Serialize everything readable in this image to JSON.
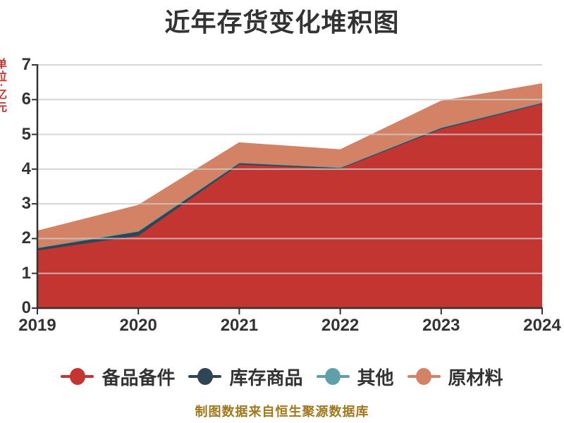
{
  "title": "近年存货变化堆积图",
  "y_axis_unit_clipped": "单位:亿元",
  "source_note": "制图数据来自恒生聚源数据库",
  "colors": {
    "background": "#ffffff",
    "title_text": "#333333",
    "axis": "#333333",
    "grid_line": "#cccccc",
    "tick_label_text": "#333333",
    "legend_text": "#333333",
    "source_note_text": "#a0781e",
    "y_axis_unit_text": "#c23531"
  },
  "chart_data": {
    "type": "area",
    "stacked": true,
    "title": "近年存货变化堆积图",
    "x_categories": [
      "2019",
      "2020",
      "2021",
      "2022",
      "2023",
      "2024"
    ],
    "series": [
      {
        "name": "备品备件",
        "color": "#c23531",
        "values": [
          1.66,
          2.08,
          4.13,
          4.01,
          5.15,
          5.88
        ]
      },
      {
        "name": "库存商品",
        "color": "#2f4554",
        "values": [
          0.08,
          0.14,
          0.06,
          0.04,
          0.05,
          0.04
        ]
      },
      {
        "name": "其他",
        "color": "#61a0a8",
        "values": [
          0,
          0,
          0,
          0,
          0,
          0
        ]
      },
      {
        "name": "原材料",
        "color": "#d48265",
        "values": [
          0.47,
          0.73,
          0.56,
          0.5,
          0.75,
          0.53
        ]
      }
    ],
    "stacked_totals": [
      2.21,
      2.95,
      4.75,
      4.55,
      5.95,
      6.45
    ],
    "ylim": [
      0,
      7
    ],
    "y_ticks": [
      0,
      1,
      2,
      3,
      4,
      5,
      6,
      7
    ],
    "grid": "horizontal",
    "legend_position": "bottom"
  }
}
